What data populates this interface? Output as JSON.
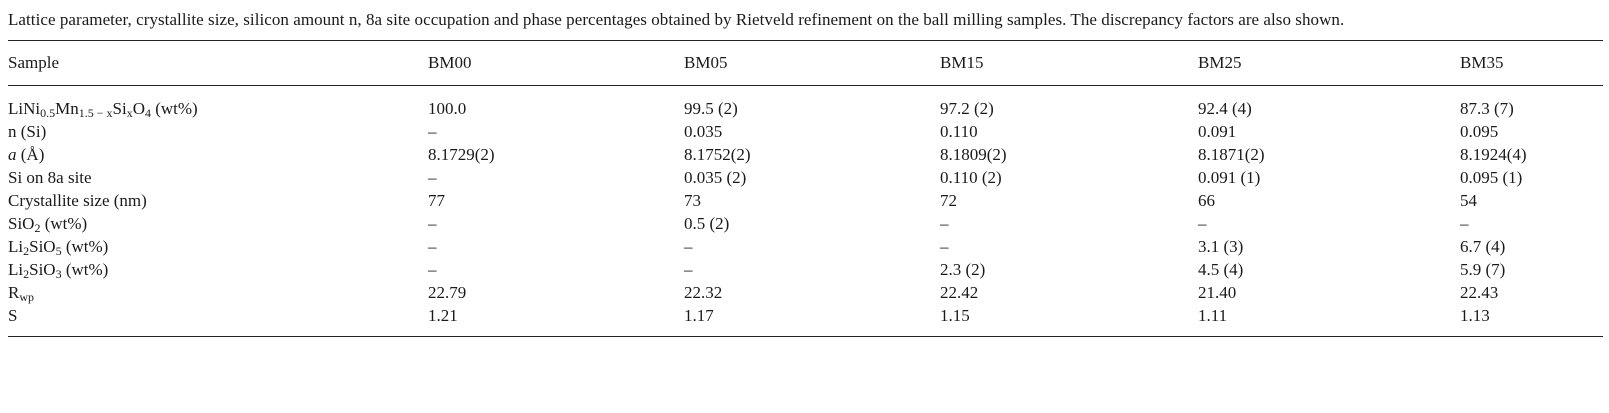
{
  "caption": "Lattice parameter, crystallite size, silicon amount n, 8a site occupation and phase percentages obtained by Rietveld refinement on the ball milling samples. The discrepancy factors are also shown.",
  "table": {
    "headers": [
      "Sample",
      "BM00",
      "BM05",
      "BM15",
      "BM25",
      "BM35"
    ],
    "rows": [
      {
        "label_parts": [
          "LiNi",
          "0.5",
          "Mn",
          "1.5 − x",
          "Si",
          "x",
          "O",
          "4",
          " (wt%)"
        ],
        "values": [
          "100.0",
          "99.5 (2)",
          "97.2 (2)",
          "92.4 (4)",
          "87.3 (7)"
        ]
      },
      {
        "label": "n (Si)",
        "values": [
          "–",
          "0.035",
          "0.110",
          "0.091",
          "0.095"
        ]
      },
      {
        "label_italic": "a",
        "label_rest": " (Å)",
        "values": [
          "8.1729(2)",
          "8.1752(2)",
          "8.1809(2)",
          "8.1871(2)",
          "8.1924(4)"
        ]
      },
      {
        "label": "Si on 8a site",
        "values": [
          "–",
          "0.035 (2)",
          "0.110 (2)",
          "0.091 (1)",
          "0.095 (1)"
        ]
      },
      {
        "label": "Crystallite size (nm)",
        "values": [
          "77",
          "73",
          "72",
          "66",
          "54"
        ]
      },
      {
        "label_parts": [
          "SiO",
          "2",
          " (wt%)"
        ],
        "values": [
          "–",
          "0.5 (2)",
          "–",
          "–",
          "–"
        ]
      },
      {
        "label_parts": [
          "Li",
          "2",
          "SiO",
          "5",
          " (wt%)"
        ],
        "values": [
          "–",
          "–",
          "–",
          "3.1 (3)",
          "6.7 (4)"
        ]
      },
      {
        "label_parts": [
          "Li",
          "2",
          "SiO",
          "3",
          " (wt%)"
        ],
        "values": [
          "–",
          "–",
          "2.3 (2)",
          "4.5 (4)",
          "5.9 (7)"
        ]
      },
      {
        "label_parts": [
          "R",
          "wp"
        ],
        "values": [
          "22.79",
          "22.32",
          "22.42",
          "21.40",
          "22.43"
        ]
      },
      {
        "label": "S",
        "values": [
          "1.21",
          "1.17",
          "1.15",
          "1.11",
          "1.13"
        ]
      }
    ]
  }
}
